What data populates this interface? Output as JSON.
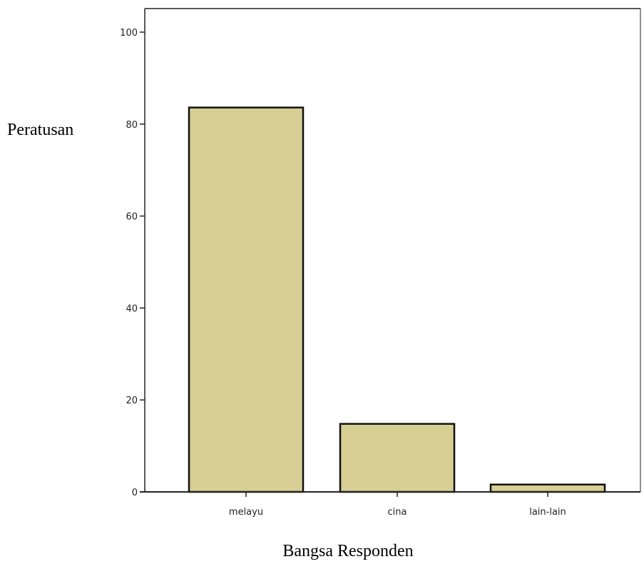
{
  "chart_data": {
    "type": "bar",
    "title": "",
    "xlabel": "Bangsa Responden",
    "ylabel": "Peratusan",
    "categories": [
      "melayu",
      "cina",
      "lain-lain"
    ],
    "values": [
      83.6,
      14.8,
      1.6
    ],
    "ylim": [
      0,
      105
    ],
    "yticks": [
      0,
      20,
      40,
      60,
      80,
      100
    ],
    "grid": false,
    "legend": "none",
    "bar_color": "#d6ce93",
    "bar_edge_color": "#111111"
  }
}
